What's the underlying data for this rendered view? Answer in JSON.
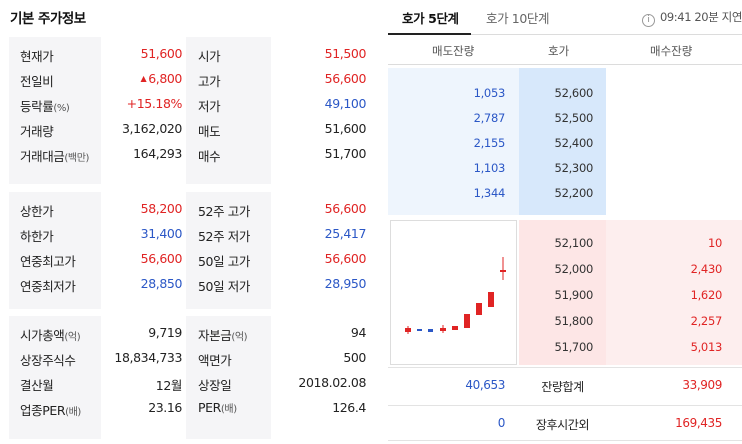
{
  "left": {
    "title": "기본 주가정보",
    "sections": [
      [
        {
          "k1": "현재가",
          "v1": "51,600",
          "c1": "red",
          "k2": "시가",
          "v2": "51,500",
          "c2": "red"
        },
        {
          "k1": "전일비",
          "v1": "6,800",
          "c1": "red",
          "arrow": "▲",
          "k2": "고가",
          "v2": "56,600",
          "c2": "red"
        },
        {
          "k1": "등락률",
          "k1s": "(%)",
          "v1": "+15.18%",
          "c1": "red",
          "k2": "저가",
          "v2": "49,100",
          "c2": "blue"
        },
        {
          "k1": "거래량",
          "v1": "3,162,020",
          "c1": "",
          "k2": "매도",
          "v2": "51,600",
          "c2": ""
        },
        {
          "k1": "거래대금",
          "k1s": "(백만)",
          "v1": "164,293",
          "c1": "",
          "k2": "매수",
          "v2": "51,700",
          "c2": ""
        }
      ],
      [
        {
          "k1": "상한가",
          "v1": "58,200",
          "c1": "red",
          "k2": "52주 고가",
          "v2": "56,600",
          "c2": "red"
        },
        {
          "k1": "하한가",
          "v1": "31,400",
          "c1": "blue",
          "k2": "52주 저가",
          "v2": "25,417",
          "c2": "blue"
        },
        {
          "k1": "연중최고가",
          "v1": "56,600",
          "c1": "red",
          "k2": "50일 고가",
          "v2": "56,600",
          "c2": "red"
        },
        {
          "k1": "연중최저가",
          "v1": "28,850",
          "c1": "blue",
          "k2": "50일 저가",
          "v2": "28,950",
          "c2": "blue"
        }
      ],
      [
        {
          "k1": "시가총액",
          "k1s": "(억)",
          "v1": "9,719",
          "c1": "",
          "k2": "자본금",
          "k2s": "(억)",
          "v2": "94",
          "c2": ""
        },
        {
          "k1": "상장주식수",
          "v1": "18,834,733",
          "c1": "",
          "k2": "액면가",
          "v2": "500",
          "c2": ""
        },
        {
          "k1": "결산월",
          "v1": "12월",
          "c1": "",
          "k2": "상장일",
          "v2": "2018.02.08",
          "c2": ""
        },
        {
          "k1": "업종PER",
          "k1s": "(배)",
          "v1": "23.16",
          "c1": "",
          "k2": "PER",
          "k2s": "(배)",
          "v2": "126.4",
          "c2": ""
        }
      ]
    ]
  },
  "right": {
    "tabs": [
      "호가 5단계",
      "호가 10단계"
    ],
    "info_icon": "info-icon",
    "time_text": "09:41 20분 지연",
    "headers": {
      "sell": "매도잔량",
      "price": "호가",
      "buy": "매수잔량"
    },
    "asks": [
      {
        "vol": "1,053",
        "price": "52,600"
      },
      {
        "vol": "2,787",
        "price": "52,500"
      },
      {
        "vol": "2,155",
        "price": "52,400"
      },
      {
        "vol": "1,103",
        "price": "52,300"
      },
      {
        "vol": "1,344",
        "price": "52,200"
      }
    ],
    "bids": [
      {
        "price": "52,100",
        "vol": "10"
      },
      {
        "price": "52,000",
        "vol": "2,430"
      },
      {
        "price": "51,900",
        "vol": "1,620"
      },
      {
        "price": "51,800",
        "vol": "2,257"
      },
      {
        "price": "51,700",
        "vol": "5,013"
      }
    ],
    "total": {
      "sell": "40,653",
      "label": "잔량합계",
      "buy": "33,909"
    },
    "after_hours": {
      "sell": "0",
      "label": "장후시간외",
      "buy": "169,435"
    }
  },
  "colors": {
    "up": "#e02424",
    "down": "#2b57c6",
    "ask_bg": "#d7e8fb",
    "bid_bg": "#fde6e6"
  }
}
